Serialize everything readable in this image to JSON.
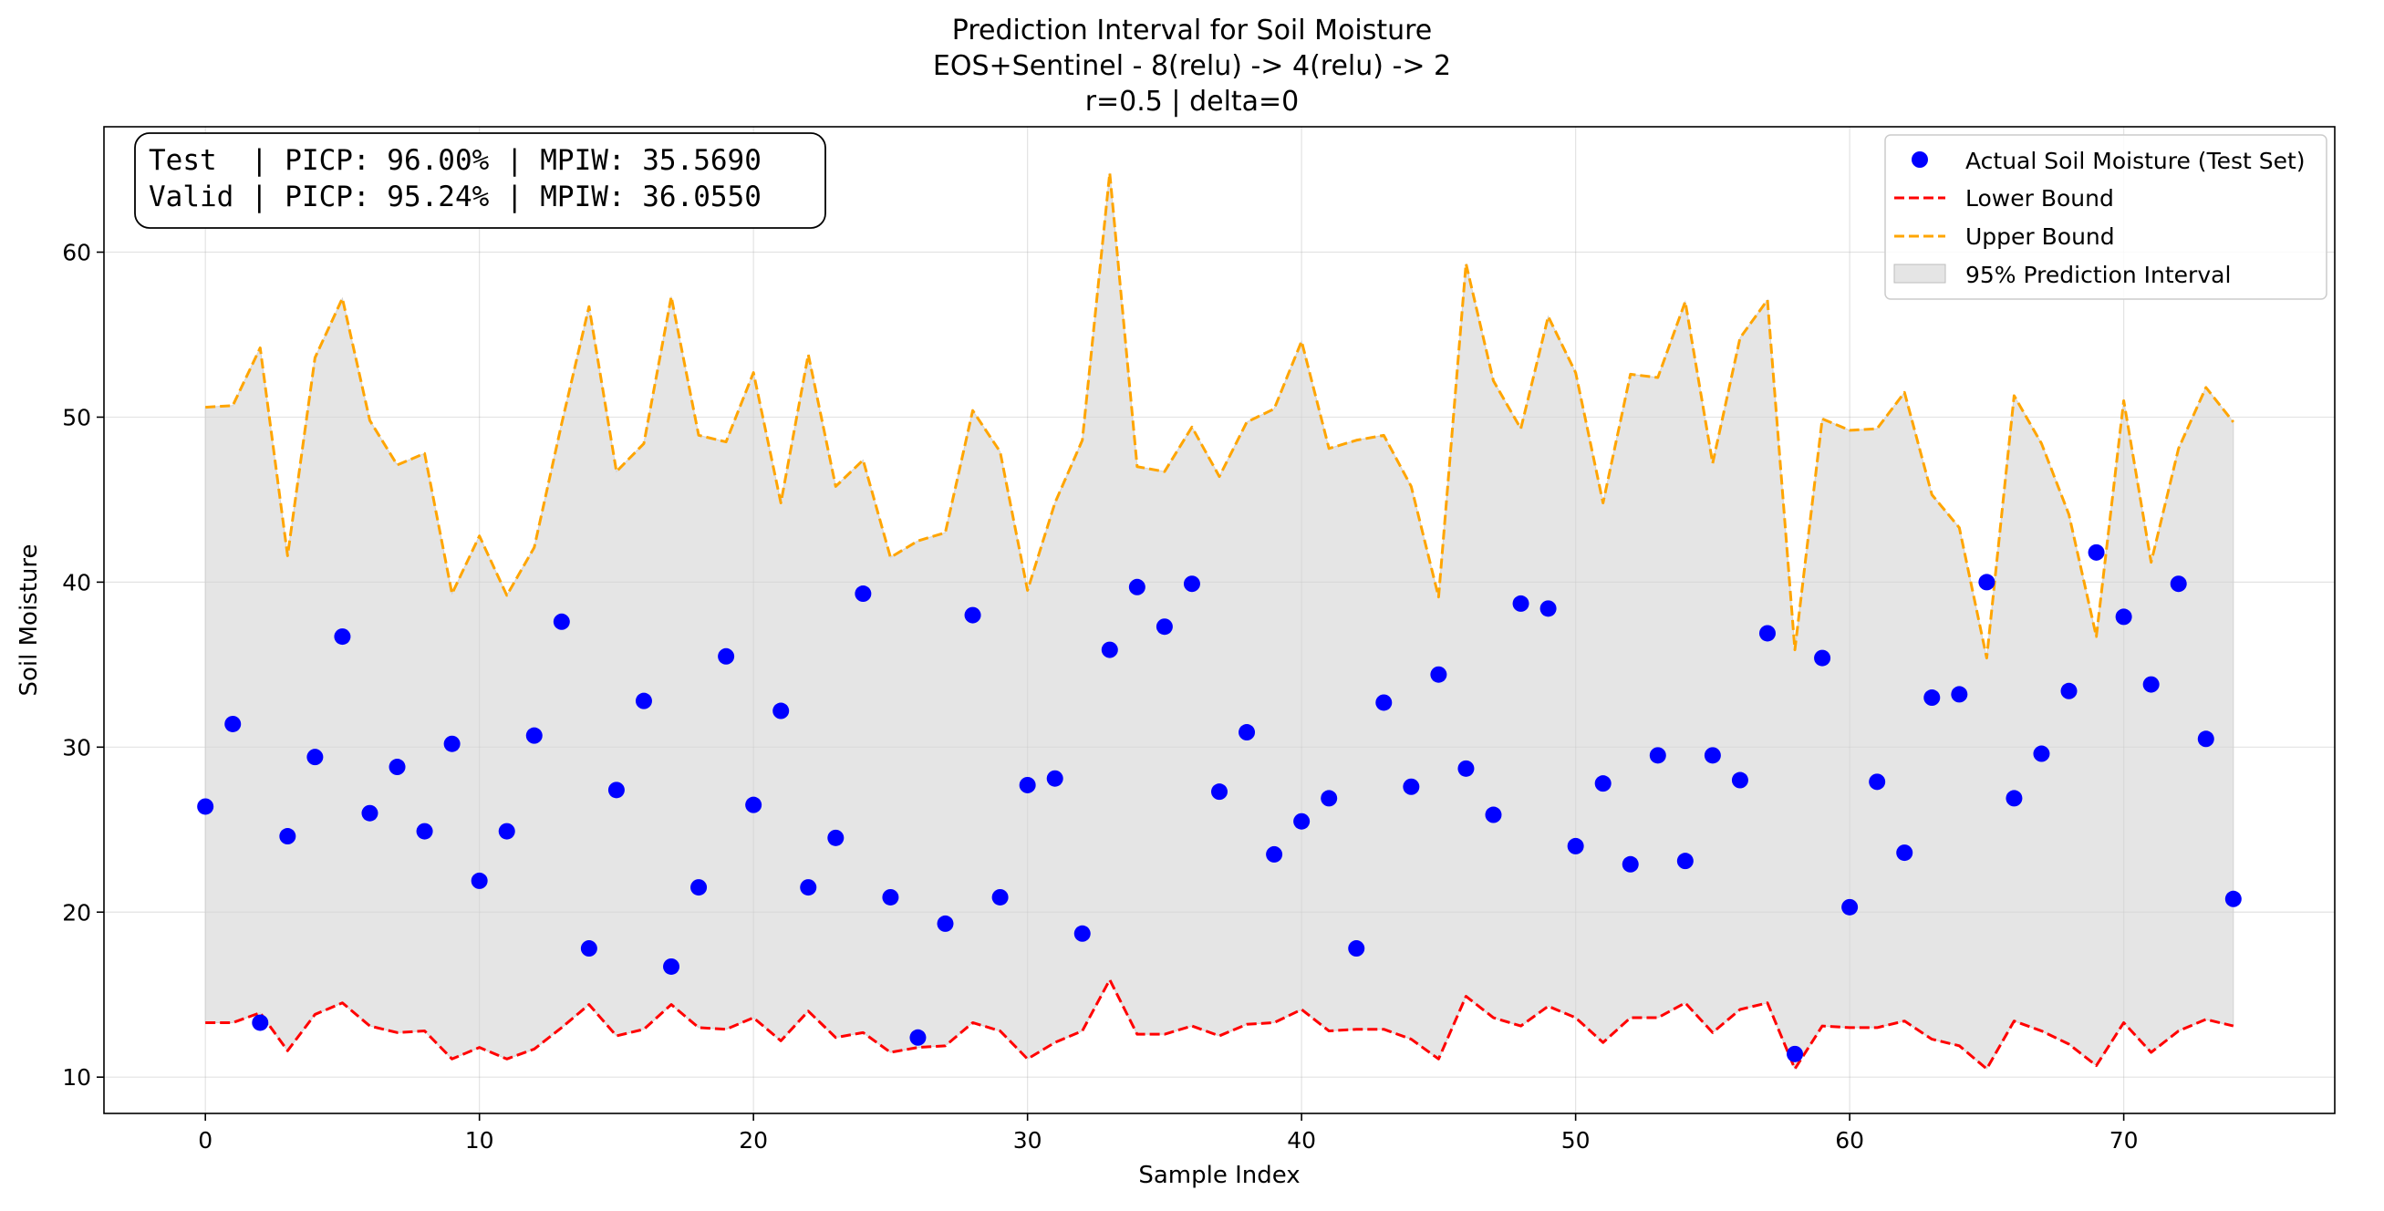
{
  "chart_data": {
    "type": "line",
    "title_lines": [
      "Prediction Interval for Soil Moisture",
      "EOS+Sentinel - 8(relu) -> 4(relu) -> 2",
      "r=0.5   |   delta=0"
    ],
    "xlabel": "Sample Index",
    "ylabel": "Soil Moisture",
    "xlim": [
      -3.7,
      77.7
    ],
    "ylim": [
      7.8,
      67.6
    ],
    "xticks": [
      0,
      10,
      20,
      30,
      40,
      50,
      60,
      70
    ],
    "yticks": [
      10,
      20,
      30,
      40,
      50,
      60
    ],
    "grid": true,
    "legend_position": "upper-right",
    "stats_box": {
      "lines": [
        "Test  | PICP: 96.00% | MPIW: 35.5690",
        "Valid | PICP: 95.24% | MPIW: 36.0550"
      ],
      "position": "upper-left"
    },
    "series": [
      {
        "name": "Actual Soil Moisture (Test Set)",
        "kind": "scatter",
        "color": "#0000ff",
        "values": [
          26.4,
          31.4,
          13.3,
          24.6,
          29.4,
          36.7,
          26.0,
          28.8,
          24.9,
          30.2,
          21.9,
          24.9,
          30.7,
          37.6,
          17.8,
          27.4,
          32.8,
          16.7,
          21.5,
          35.5,
          26.5,
          32.2,
          21.5,
          24.5,
          39.3,
          20.9,
          12.4,
          19.3,
          38.0,
          20.9,
          27.7,
          28.1,
          18.7,
          35.9,
          39.7,
          37.3,
          39.9,
          27.3,
          30.9,
          23.5,
          25.5,
          26.9,
          17.8,
          32.7,
          27.6,
          34.4,
          28.7,
          25.9,
          38.7,
          38.4,
          24.0,
          27.8,
          22.9,
          29.5,
          23.1,
          29.5,
          28.0,
          36.9,
          11.4,
          35.4,
          20.3,
          27.9,
          23.6,
          33.0,
          33.2,
          40.0,
          26.9,
          29.6,
          33.4,
          41.8,
          37.9,
          33.8,
          39.9,
          30.5,
          20.8
        ]
      },
      {
        "name": "Lower Bound",
        "kind": "line",
        "style": "dashed",
        "color": "#ff0000",
        "values": [
          13.3,
          13.3,
          13.9,
          11.6,
          13.8,
          14.5,
          13.1,
          12.7,
          12.8,
          11.1,
          11.8,
          11.1,
          11.7,
          13.0,
          14.4,
          12.5,
          12.9,
          14.4,
          13.0,
          12.9,
          13.6,
          12.2,
          14.0,
          12.4,
          12.7,
          11.5,
          11.8,
          11.9,
          13.3,
          12.8,
          11.1,
          12.1,
          12.8,
          15.9,
          12.6,
          12.6,
          13.1,
          12.5,
          13.2,
          13.3,
          14.1,
          12.8,
          12.9,
          12.9,
          12.3,
          11.1,
          14.9,
          13.6,
          13.1,
          14.3,
          13.6,
          12.1,
          13.6,
          13.6,
          14.5,
          12.7,
          14.1,
          14.5,
          10.5,
          13.1,
          13.0,
          13.0,
          13.4,
          12.3,
          11.9,
          10.5,
          13.4,
          12.8,
          12.0,
          10.7,
          13.3,
          11.5,
          12.8,
          13.5,
          13.1
        ]
      },
      {
        "name": "Upper Bound",
        "kind": "line",
        "style": "dashed",
        "color": "#ffa500",
        "values": [
          50.6,
          50.7,
          54.2,
          41.6,
          53.6,
          57.2,
          49.8,
          47.1,
          47.8,
          39.3,
          42.8,
          39.2,
          42.1,
          49.6,
          56.7,
          46.7,
          48.4,
          57.3,
          48.9,
          48.5,
          52.7,
          44.8,
          53.8,
          45.8,
          47.4,
          41.5,
          42.5,
          43.0,
          50.4,
          47.9,
          39.5,
          44.8,
          48.6,
          64.8,
          47.0,
          46.7,
          49.4,
          46.4,
          49.7,
          50.5,
          54.6,
          48.1,
          48.6,
          48.9,
          45.8,
          39.1,
          59.3,
          52.2,
          49.3,
          56.1,
          52.7,
          44.8,
          52.6,
          52.4,
          57.0,
          47.2,
          54.8,
          57.1,
          35.9,
          49.9,
          49.2,
          49.3,
          51.5,
          45.3,
          43.3,
          35.4,
          51.3,
          48.4,
          44.1,
          36.7,
          51.0,
          41.2,
          48.1,
          51.8,
          49.7
        ]
      },
      {
        "name": "95% Prediction Interval",
        "kind": "band",
        "color": "#d3d3d3",
        "between": [
          "Lower Bound",
          "Upper Bound"
        ]
      }
    ]
  }
}
